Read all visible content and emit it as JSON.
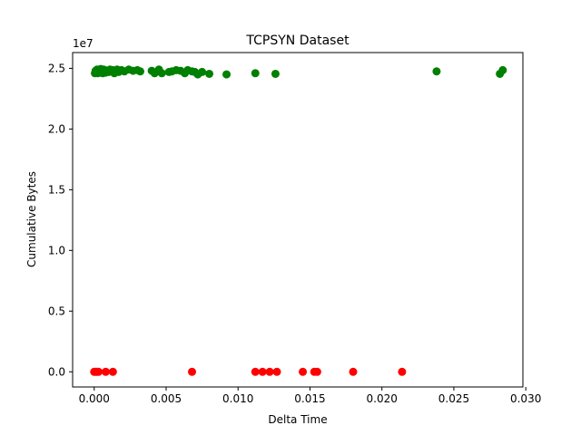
{
  "chart_data": {
    "type": "scatter",
    "title": "TCPSYN Dataset",
    "xlabel": "Delta Time",
    "ylabel": "Cumulative Bytes",
    "y_offset_label": "1e7",
    "xlim": [
      -0.0015,
      0.0298
    ],
    "ylim": [
      -1.25,
      26.3
    ],
    "x_ticks": [
      0.0,
      0.005,
      0.01,
      0.015,
      0.02,
      0.025,
      0.03
    ],
    "x_tick_labels": [
      "0.000",
      "0.005",
      "0.010",
      "0.015",
      "0.020",
      "0.025",
      "0.030"
    ],
    "y_ticks": [
      0.0,
      5.0,
      10.0,
      15.0,
      20.0,
      25.0
    ],
    "y_tick_labels": [
      "0.0",
      "0.5",
      "1.0",
      "1.5",
      "2.0",
      "2.5"
    ],
    "grid": false,
    "series": [
      {
        "color": "#008000",
        "points": [
          [
            5e-05,
            24.6
          ],
          [
            0.0001,
            24.8
          ],
          [
            0.00015,
            24.7
          ],
          [
            0.0002,
            24.9
          ],
          [
            0.00025,
            24.6
          ],
          [
            0.0003,
            24.75
          ],
          [
            0.00035,
            24.85
          ],
          [
            0.0004,
            24.65
          ],
          [
            0.00045,
            24.95
          ],
          [
            0.0005,
            24.7
          ],
          [
            0.00055,
            24.8
          ],
          [
            0.0006,
            24.6
          ],
          [
            0.00065,
            24.9
          ],
          [
            0.0007,
            24.75
          ],
          [
            0.00075,
            24.85
          ],
          [
            0.0008,
            24.65
          ],
          [
            0.0009,
            24.8
          ],
          [
            0.001,
            24.7
          ],
          [
            0.0011,
            24.9
          ],
          [
            0.0012,
            24.75
          ],
          [
            0.0013,
            24.85
          ],
          [
            0.0014,
            24.6
          ],
          [
            0.0015,
            24.8
          ],
          [
            0.0016,
            24.9
          ],
          [
            0.0017,
            24.7
          ],
          [
            0.0019,
            24.85
          ],
          [
            0.0021,
            24.75
          ],
          [
            0.0024,
            24.9
          ],
          [
            0.0027,
            24.8
          ],
          [
            0.003,
            24.85
          ],
          [
            0.0032,
            24.75
          ],
          [
            0.004,
            24.8
          ],
          [
            0.0042,
            24.6
          ],
          [
            0.0045,
            24.9
          ],
          [
            0.0047,
            24.6
          ],
          [
            0.0052,
            24.7
          ],
          [
            0.0054,
            24.75
          ],
          [
            0.0057,
            24.85
          ],
          [
            0.006,
            24.8
          ],
          [
            0.0063,
            24.6
          ],
          [
            0.0065,
            24.85
          ],
          [
            0.0068,
            24.75
          ],
          [
            0.007,
            24.7
          ],
          [
            0.0072,
            24.5
          ],
          [
            0.0075,
            24.7
          ],
          [
            0.008,
            24.55
          ],
          [
            0.0092,
            24.5
          ],
          [
            0.0112,
            24.6
          ],
          [
            0.0126,
            24.55
          ],
          [
            0.0238,
            24.75
          ],
          [
            0.0282,
            24.55
          ],
          [
            0.0284,
            24.85
          ]
        ]
      },
      {
        "color": "#ff0000",
        "points": [
          [
            0.0,
            0.0
          ],
          [
            0.0001,
            0.0
          ],
          [
            0.0002,
            0.0
          ],
          [
            0.0003,
            0.0
          ],
          [
            0.0008,
            0.0
          ],
          [
            0.0013,
            0.0
          ],
          [
            0.0068,
            0.0
          ],
          [
            0.0112,
            0.0
          ],
          [
            0.0117,
            0.0
          ],
          [
            0.0122,
            0.0
          ],
          [
            0.0127,
            0.0
          ],
          [
            0.0145,
            0.0
          ],
          [
            0.0153,
            0.0
          ],
          [
            0.0155,
            0.0
          ],
          [
            0.018,
            0.0
          ],
          [
            0.0214,
            0.0
          ]
        ]
      }
    ]
  }
}
